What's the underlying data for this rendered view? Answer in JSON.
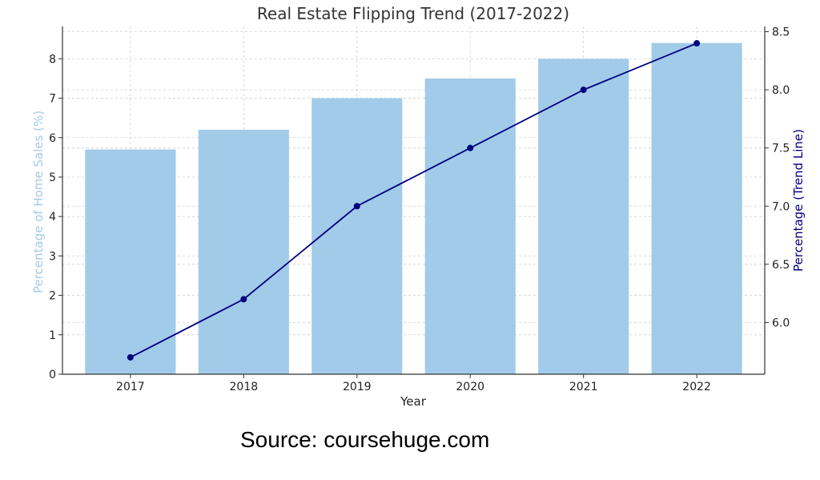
{
  "chart_data": {
    "type": "bar",
    "title": "Real Estate Flipping Trend (2017-2022)",
    "xlabel": "Year",
    "ylabel": "Percentage of Home Sales (%)",
    "y2label": "Percentage (Trend Line)",
    "categories": [
      "2017",
      "2018",
      "2019",
      "2020",
      "2021",
      "2022"
    ],
    "series": [
      {
        "values": [
          5.7,
          6.2,
          7.0,
          7.5,
          8.0,
          8.4
        ],
        "kind": "bar",
        "axis": "left",
        "color": "#a1cbe9"
      },
      {
        "values": [
          5.7,
          6.2,
          7.0,
          7.5,
          8.0,
          8.4
        ],
        "kind": "line",
        "axis": "right",
        "color": "#000080"
      }
    ],
    "ylim": [
      0,
      8.82
    ],
    "y2lim": [
      5.555,
      8.545
    ],
    "yticks": [
      "0",
      "1",
      "2",
      "3",
      "4",
      "5",
      "6",
      "7",
      "8"
    ],
    "y2ticks": [
      "6.0",
      "6.5",
      "7.0",
      "7.5",
      "8.0",
      "8.5"
    ],
    "grid": true,
    "ylabel_color": "#a1cbe9",
    "y2label_color": "#000080"
  },
  "source": "Source: coursehuge.com"
}
